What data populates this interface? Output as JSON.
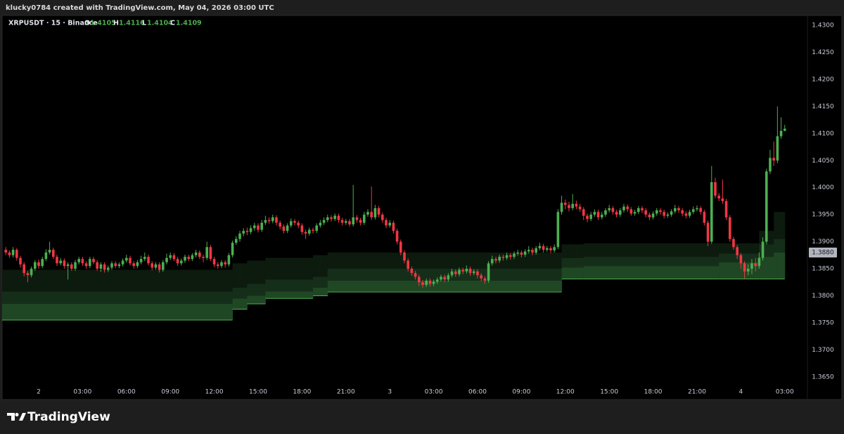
{
  "header": {
    "credit": "klucky0784 created with TradingView.com, May 04, 2026 03:00 UTC"
  },
  "footer": {
    "brand": "TradingView"
  },
  "chart_data": {
    "type": "candlestick",
    "title": "XRPUSDT · 15 · Binance",
    "legend_labels": [
      "O",
      "H",
      "L",
      "C"
    ],
    "up_color": "#4caf50",
    "down_color": "#f23645",
    "grid": false,
    "xlim": [
      -1,
      219.2
    ],
    "ylim": [
      1.3638,
      1.4317
    ],
    "xticks": [
      {
        "value": 9,
        "label": "2"
      },
      {
        "value": 21,
        "label": "03:00"
      },
      {
        "value": 33,
        "label": "06:00"
      },
      {
        "value": 45,
        "label": "09:00"
      },
      {
        "value": 57,
        "label": "12:00"
      },
      {
        "value": 69,
        "label": "15:00"
      },
      {
        "value": 81,
        "label": "18:00"
      },
      {
        "value": 93,
        "label": "21:00"
      },
      {
        "value": 105,
        "label": "3"
      },
      {
        "value": 117,
        "label": "03:00"
      },
      {
        "value": 129,
        "label": "06:00"
      },
      {
        "value": 141,
        "label": "09:00"
      },
      {
        "value": 153,
        "label": "12:00"
      },
      {
        "value": 165,
        "label": "15:00"
      },
      {
        "value": 177,
        "label": "18:00"
      },
      {
        "value": 189,
        "label": "21:00"
      },
      {
        "value": 201,
        "label": "4"
      },
      {
        "value": 213,
        "label": "03:00"
      }
    ],
    "yticks": [
      {
        "value": 1.43,
        "label": "1.4300"
      },
      {
        "value": 1.425,
        "label": "1.4250"
      },
      {
        "value": 1.42,
        "label": "1.4200"
      },
      {
        "value": 1.415,
        "label": "1.4150"
      },
      {
        "value": 1.41,
        "label": "1.4100"
      },
      {
        "value": 1.405,
        "label": "1.4050"
      },
      {
        "value": 1.4,
        "label": "1.4000"
      },
      {
        "value": 1.395,
        "label": "1.3950"
      },
      {
        "value": 1.39,
        "label": "1.3900"
      },
      {
        "value": 1.385,
        "label": "1.3850"
      },
      {
        "value": 1.38,
        "label": "1.3800"
      },
      {
        "value": 1.375,
        "label": "1.3750"
      },
      {
        "value": 1.37,
        "label": "1.3700"
      },
      {
        "value": 1.365,
        "label": "1.3650"
      }
    ],
    "indicator_label": {
      "value": 1.388,
      "label": "1.3880"
    },
    "bands": {
      "x": [
        0,
        62,
        66,
        71,
        84,
        88,
        152,
        158,
        195,
        206,
        210,
        213
      ],
      "series": [
        {
          "color": "#0d1b0f",
          "values": [
            1.3848,
            1.386,
            1.3865,
            1.387,
            1.3875,
            1.388,
            1.3895,
            1.3897,
            1.3897,
            1.392,
            1.3955,
            1.3955
          ]
        },
        {
          "color": "#152e19",
          "values": [
            1.3808,
            1.3815,
            1.3822,
            1.383,
            1.3835,
            1.385,
            1.387,
            1.3872,
            1.3878,
            1.3895,
            1.3905,
            1.3905
          ]
        },
        {
          "color": "#1f4724",
          "values": [
            1.3785,
            1.3795,
            1.38,
            1.3808,
            1.3815,
            1.3828,
            1.3852,
            1.3855,
            1.3862,
            1.3872,
            1.388,
            1.388
          ]
        },
        {
          "color": "#4caf50",
          "values": [
            1.3755,
            1.3775,
            1.3785,
            1.3795,
            1.38,
            1.3807,
            1.3831,
            1.3831,
            1.3831,
            1.3831,
            1.3831,
            1.3831
          ]
        }
      ]
    },
    "open": [
      1.3885,
      1.388,
      1.3875,
      1.3885,
      1.387,
      1.3858,
      1.3842,
      1.3838,
      1.385,
      1.3862,
      1.3855,
      1.3868,
      1.388,
      1.3885,
      1.3872,
      1.386,
      1.3865,
      1.3855,
      1.3858,
      1.385,
      1.3862,
      1.3868,
      1.386,
      1.3855,
      1.3868,
      1.3862,
      1.385,
      1.3858,
      1.3848,
      1.3852,
      1.386,
      1.3855,
      1.3858,
      1.3865,
      1.387,
      1.386,
      1.3855,
      1.3862,
      1.3868,
      1.3872,
      1.386,
      1.3852,
      1.3858,
      1.3848,
      1.3862,
      1.387,
      1.3875,
      1.3868,
      1.386,
      1.3865,
      1.3872,
      1.3868,
      1.3875,
      1.388,
      1.3872,
      1.387,
      1.389,
      1.3868,
      1.3858,
      1.3855,
      1.3862,
      1.3858,
      1.3875,
      1.3898,
      1.3905,
      1.3915,
      1.392,
      1.3918,
      1.3925,
      1.393,
      1.3922,
      1.3935,
      1.394,
      1.3938,
      1.3945,
      1.3935,
      1.3928,
      1.392,
      1.393,
      1.3938,
      1.3935,
      1.393,
      1.3918,
      1.3915,
      1.3922,
      1.392,
      1.393,
      1.3935,
      1.394,
      1.3945,
      1.3942,
      1.3948,
      1.394,
      1.3935,
      1.3938,
      1.3932,
      1.3945,
      1.394,
      1.3935,
      1.395,
      1.3955,
      1.3945,
      1.3962,
      1.395,
      1.394,
      1.393,
      1.3935,
      1.392,
      1.39,
      1.388,
      1.3865,
      1.385,
      1.3842,
      1.3835,
      1.3825,
      1.382,
      1.3828,
      1.3822,
      1.3826,
      1.383,
      1.3835,
      1.383,
      1.3838,
      1.3845,
      1.384,
      1.3848,
      1.3845,
      1.385,
      1.3842,
      1.3845,
      1.3838,
      1.3832,
      1.3828,
      1.386,
      1.3868,
      1.3865,
      1.3872,
      1.387,
      1.3875,
      1.3872,
      1.3878,
      1.388,
      1.3876,
      1.3882,
      1.3885,
      1.388,
      1.3888,
      1.3892,
      1.3885,
      1.3888,
      1.3884,
      1.389,
      1.3955,
      1.3972,
      1.3968,
      1.3962,
      1.397,
      1.3965,
      1.396,
      1.3948,
      1.3942,
      1.395,
      1.3955,
      1.3945,
      1.395,
      1.3958,
      1.3962,
      1.3955,
      1.395,
      1.3958,
      1.3965,
      1.396,
      1.3952,
      1.3955,
      1.3962,
      1.3958,
      1.395,
      1.3945,
      1.3952,
      1.3958,
      1.3955,
      1.3948,
      1.395,
      1.3956,
      1.3962,
      1.3958,
      1.3952,
      1.3948,
      1.3955,
      1.396,
      1.3962,
      1.3955,
      1.3935,
      1.39,
      1.401,
      1.3985,
      1.398,
      1.3975,
      1.3945,
      1.3905,
      1.389,
      1.3875,
      1.386,
      1.3845,
      1.385,
      1.386,
      1.3855,
      1.387,
      1.39,
      1.403,
      1.4055,
      1.405,
      1.4095,
      1.4105
    ],
    "high": [
      1.389,
      1.3884,
      1.389,
      1.3888,
      1.3874,
      1.3862,
      1.3846,
      1.3854,
      1.3866,
      1.3867,
      1.3872,
      1.3886,
      1.39,
      1.3889,
      1.3876,
      1.387,
      1.3869,
      1.3862,
      1.3862,
      1.3866,
      1.3872,
      1.3872,
      1.3864,
      1.3872,
      1.3872,
      1.3866,
      1.3862,
      1.3862,
      1.3856,
      1.3864,
      1.3864,
      1.3862,
      1.3869,
      1.3876,
      1.3874,
      1.3864,
      1.3866,
      1.3874,
      1.388,
      1.3876,
      1.3864,
      1.3862,
      1.3862,
      1.3866,
      1.3878,
      1.388,
      1.3879,
      1.3872,
      1.3869,
      1.3876,
      1.3876,
      1.3879,
      1.3885,
      1.3884,
      1.3876,
      1.39,
      1.3894,
      1.3872,
      1.3862,
      1.3866,
      1.3866,
      1.3879,
      1.3902,
      1.391,
      1.392,
      1.3925,
      1.3926,
      1.393,
      1.3935,
      1.3934,
      1.394,
      1.3948,
      1.3945,
      1.395,
      1.3949,
      1.3939,
      1.3932,
      1.3934,
      1.3943,
      1.3942,
      1.3939,
      1.3934,
      1.3922,
      1.3926,
      1.3926,
      1.3934,
      1.394,
      1.3945,
      1.395,
      1.3949,
      1.3952,
      1.3952,
      1.3944,
      1.3942,
      1.3942,
      1.4005,
      1.3949,
      1.3944,
      1.3955,
      1.396,
      1.4002,
      1.3968,
      1.3966,
      1.3954,
      1.3944,
      1.394,
      1.3939,
      1.3924,
      1.3904,
      1.3884,
      1.3869,
      1.3854,
      1.3846,
      1.3839,
      1.3829,
      1.3832,
      1.3832,
      1.383,
      1.3834,
      1.3839,
      1.3839,
      1.3842,
      1.385,
      1.3849,
      1.3852,
      1.3852,
      1.3856,
      1.3854,
      1.3849,
      1.3849,
      1.3842,
      1.3836,
      1.3864,
      1.3874,
      1.3872,
      1.3876,
      1.3876,
      1.388,
      1.3879,
      1.3882,
      1.3885,
      1.3884,
      1.3886,
      1.3892,
      1.3889,
      1.3892,
      1.3898,
      1.3896,
      1.3892,
      1.3892,
      1.3895,
      1.396,
      1.3985,
      1.3978,
      1.3974,
      1.3988,
      1.3976,
      1.397,
      1.3964,
      1.3952,
      1.3955,
      1.396,
      1.3959,
      1.3955,
      1.3962,
      1.3968,
      1.3966,
      1.3959,
      1.3962,
      1.397,
      1.3969,
      1.3964,
      1.3959,
      1.3966,
      1.3966,
      1.3962,
      1.3954,
      1.3956,
      1.3962,
      1.3962,
      1.3959,
      1.3954,
      1.396,
      1.3968,
      1.3966,
      1.3962,
      1.3956,
      1.3959,
      1.3965,
      1.3967,
      1.3966,
      1.3959,
      1.3939,
      1.404,
      1.4018,
      1.399,
      1.4015,
      1.3979,
      1.3949,
      1.3909,
      1.3894,
      1.3879,
      1.3864,
      1.3858,
      1.3868,
      1.387,
      1.388,
      1.3908,
      1.4035,
      1.407,
      1.4085,
      1.415,
      1.413,
      1.4116
    ],
    "low": [
      1.3875,
      1.387,
      1.3871,
      1.3865,
      1.3852,
      1.3836,
      1.3825,
      1.3834,
      1.3846,
      1.385,
      1.3851,
      1.3864,
      1.3876,
      1.3868,
      1.3855,
      1.3856,
      1.385,
      1.383,
      1.3846,
      1.3846,
      1.3858,
      1.3855,
      1.385,
      1.3851,
      1.3858,
      1.3846,
      1.3844,
      1.3843,
      1.3844,
      1.3848,
      1.3851,
      1.3851,
      1.3854,
      1.3861,
      1.3856,
      1.385,
      1.3851,
      1.3858,
      1.3864,
      1.3856,
      1.3847,
      1.3848,
      1.3843,
      1.3844,
      1.3858,
      1.3866,
      1.3864,
      1.3855,
      1.3856,
      1.3861,
      1.3864,
      1.3864,
      1.3871,
      1.3868,
      1.3862,
      1.3866,
      1.3864,
      1.3853,
      1.385,
      1.3851,
      1.3852,
      1.3854,
      1.3871,
      1.3894,
      1.39,
      1.391,
      1.3912,
      1.3914,
      1.392,
      1.3917,
      1.3918,
      1.3931,
      1.3933,
      1.3934,
      1.393,
      1.3923,
      1.3915,
      1.3916,
      1.3926,
      1.393,
      1.3925,
      1.3913,
      1.3905,
      1.3911,
      1.3915,
      1.3916,
      1.3926,
      1.3931,
      1.3936,
      1.3937,
      1.3938,
      1.3935,
      1.393,
      1.3931,
      1.3928,
      1.3928,
      1.3935,
      1.393,
      1.3931,
      1.3946,
      1.394,
      1.3941,
      1.3945,
      1.3935,
      1.3925,
      1.3926,
      1.3915,
      1.3895,
      1.3875,
      1.386,
      1.3845,
      1.3837,
      1.383,
      1.3818,
      1.3815,
      1.3816,
      1.3817,
      1.3818,
      1.3822,
      1.3826,
      1.3825,
      1.3826,
      1.3834,
      1.3835,
      1.3836,
      1.384,
      1.3841,
      1.3837,
      1.3838,
      1.3832,
      1.3827,
      1.3822,
      1.3824,
      1.3856,
      1.386,
      1.3861,
      1.3865,
      1.3866,
      1.3867,
      1.3868,
      1.3874,
      1.3871,
      1.3872,
      1.3878,
      1.3875,
      1.3876,
      1.3884,
      1.388,
      1.3881,
      1.3879,
      1.388,
      1.3886,
      1.395,
      1.396,
      1.3956,
      1.3958,
      1.396,
      1.3955,
      1.394,
      1.3936,
      1.3938,
      1.3946,
      1.394,
      1.3941,
      1.3946,
      1.3954,
      1.395,
      1.3945,
      1.3946,
      1.3954,
      1.3955,
      1.3948,
      1.3948,
      1.3951,
      1.3953,
      1.3945,
      1.394,
      1.3941,
      1.3948,
      1.395,
      1.3943,
      1.3944,
      1.3946,
      1.3952,
      1.3953,
      1.3947,
      1.3943,
      1.3944,
      1.3951,
      1.3956,
      1.395,
      1.393,
      1.3892,
      1.3896,
      1.398,
      1.3975,
      1.397,
      1.394,
      1.39,
      1.3885,
      1.3868,
      1.385,
      1.3832,
      1.3838,
      1.384,
      1.3845,
      1.385,
      1.3865,
      1.3895,
      1.4025,
      1.404,
      1.4045,
      1.409,
      1.4104
    ],
    "close": [
      1.388,
      1.3875,
      1.3885,
      1.387,
      1.3858,
      1.3842,
      1.3838,
      1.385,
      1.3862,
      1.3855,
      1.3868,
      1.388,
      1.3885,
      1.3872,
      1.386,
      1.3865,
      1.3855,
      1.3858,
      1.385,
      1.3862,
      1.3868,
      1.386,
      1.3855,
      1.3868,
      1.3862,
      1.385,
      1.3858,
      1.3848,
      1.3852,
      1.386,
      1.3855,
      1.3858,
      1.3865,
      1.387,
      1.386,
      1.3855,
      1.3862,
      1.3868,
      1.3872,
      1.386,
      1.3852,
      1.3858,
      1.3848,
      1.3862,
      1.387,
      1.3875,
      1.3868,
      1.386,
      1.3865,
      1.3872,
      1.3868,
      1.3875,
      1.388,
      1.3872,
      1.387,
      1.389,
      1.3868,
      1.3858,
      1.3855,
      1.3862,
      1.3858,
      1.3875,
      1.3898,
      1.3905,
      1.3915,
      1.392,
      1.3918,
      1.3925,
      1.393,
      1.3922,
      1.3935,
      1.394,
      1.3938,
      1.3945,
      1.3935,
      1.3928,
      1.392,
      1.393,
      1.3938,
      1.3935,
      1.393,
      1.3918,
      1.3915,
      1.3922,
      1.392,
      1.393,
      1.3935,
      1.394,
      1.3945,
      1.3942,
      1.3948,
      1.394,
      1.3935,
      1.3938,
      1.3932,
      1.3945,
      1.394,
      1.3935,
      1.395,
      1.3955,
      1.3945,
      1.3962,
      1.395,
      1.394,
      1.393,
      1.3935,
      1.392,
      1.39,
      1.388,
      1.3865,
      1.385,
      1.3842,
      1.3835,
      1.3825,
      1.382,
      1.3828,
      1.3822,
      1.3826,
      1.383,
      1.3835,
      1.383,
      1.3838,
      1.3845,
      1.384,
      1.3848,
      1.3845,
      1.385,
      1.3842,
      1.3845,
      1.3838,
      1.3832,
      1.3828,
      1.386,
      1.3868,
      1.3865,
      1.3872,
      1.387,
      1.3875,
      1.3872,
      1.3878,
      1.388,
      1.3876,
      1.3882,
      1.3885,
      1.388,
      1.3888,
      1.3892,
      1.3885,
      1.3888,
      1.3884,
      1.389,
      1.3955,
      1.3972,
      1.3968,
      1.3962,
      1.397,
      1.3965,
      1.396,
      1.3948,
      1.3942,
      1.395,
      1.3955,
      1.3945,
      1.395,
      1.3958,
      1.3962,
      1.3955,
      1.395,
      1.3958,
      1.3965,
      1.396,
      1.3952,
      1.3955,
      1.3962,
      1.3958,
      1.395,
      1.3945,
      1.3952,
      1.3958,
      1.3955,
      1.3948,
      1.395,
      1.3956,
      1.3962,
      1.3958,
      1.3952,
      1.3948,
      1.3955,
      1.396,
      1.3962,
      1.3955,
      1.3935,
      1.39,
      1.401,
      1.3985,
      1.398,
      1.3975,
      1.3945,
      1.3905,
      1.389,
      1.3875,
      1.386,
      1.3845,
      1.385,
      1.386,
      1.3855,
      1.387,
      1.39,
      1.403,
      1.4055,
      1.405,
      1.4095,
      1.4105,
      1.4109
    ]
  }
}
